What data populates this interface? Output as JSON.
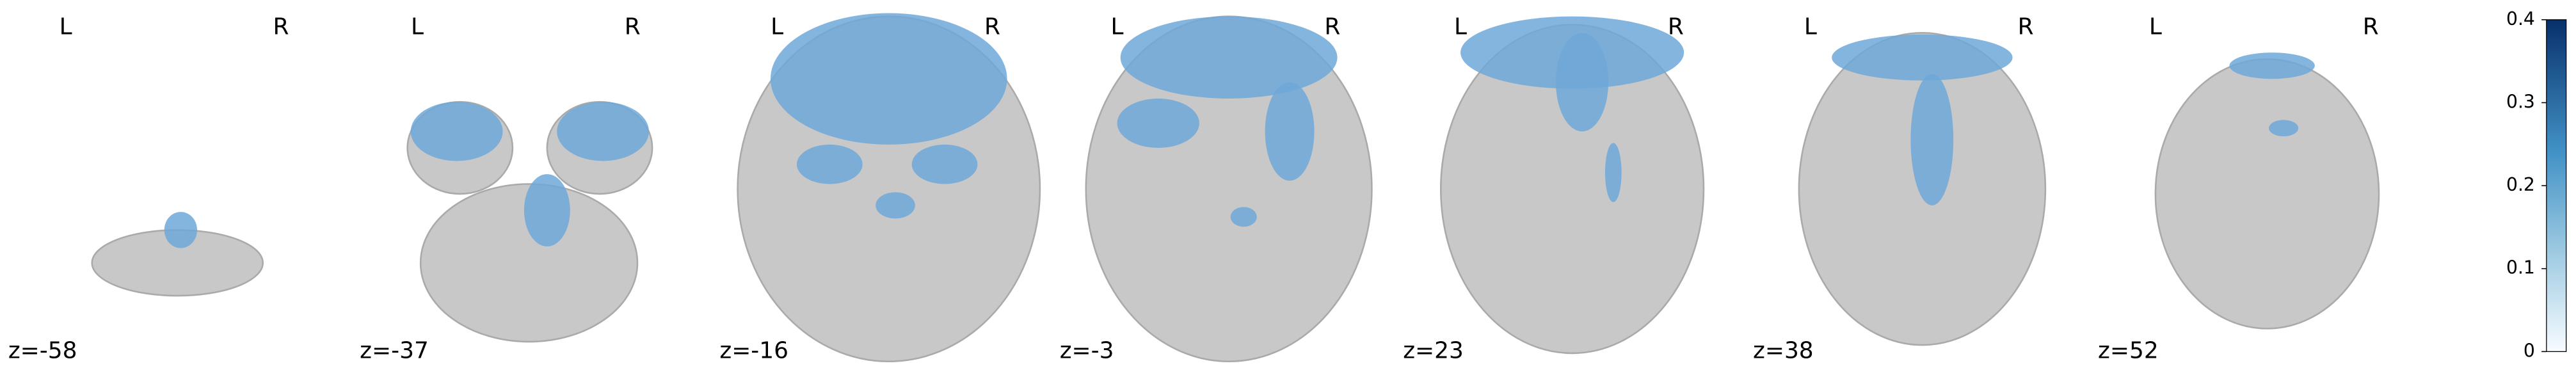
{
  "slices": [
    {
      "left": "L",
      "right": "R",
      "z_label": "z=-58"
    },
    {
      "left": "L",
      "right": "R",
      "z_label": "z=-37"
    },
    {
      "left": "L",
      "right": "R",
      "z_label": "z=-16"
    },
    {
      "left": "L",
      "right": "R",
      "z_label": "z=-3"
    },
    {
      "left": "L",
      "right": "R",
      "z_label": "z=23"
    },
    {
      "left": "L",
      "right": "R",
      "z_label": "z=38"
    },
    {
      "left": "L",
      "right": "R",
      "z_label": "z=52"
    }
  ],
  "colorbar": {
    "lim": [
      0,
      0.4
    ],
    "ticks": [
      0,
      0.1,
      0.2,
      0.3,
      0.4
    ]
  }
}
